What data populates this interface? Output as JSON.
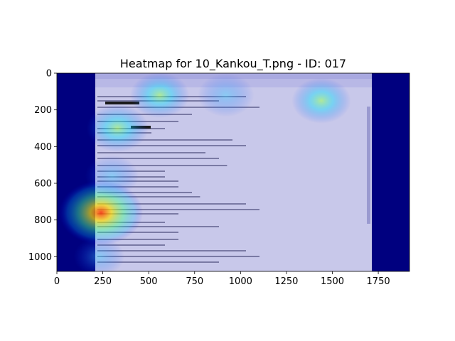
{
  "chart_data": {
    "type": "heatmap",
    "title": "Heatmap for 10_Kankou_T.png - ID: 017",
    "xlabel": "",
    "ylabel": "",
    "xlim": [
      0,
      1920
    ],
    "ylim": [
      1080,
      0
    ],
    "x_ticks": [
      0,
      250,
      500,
      750,
      1000,
      1250,
      1500,
      1750
    ],
    "y_ticks": [
      0,
      200,
      400,
      600,
      800,
      1000
    ],
    "grid": false,
    "colormap": "jet",
    "colormap_colors": {
      "low": "#00007f",
      "mid_low": "#0000ff",
      "mid": "#00ffff",
      "mid_high": "#ffff00",
      "high": "#ff0000"
    },
    "background_image": "email client screenshot",
    "hotspots": [
      {
        "x": 240,
        "y": 760,
        "intensity": 0.85
      },
      {
        "x": 330,
        "y": 300,
        "intensity": 0.45
      },
      {
        "x": 560,
        "y": 120,
        "intensity": 0.4
      },
      {
        "x": 920,
        "y": 120,
        "intensity": 0.35
      },
      {
        "x": 1440,
        "y": 150,
        "intensity": 0.4
      },
      {
        "x": 300,
        "y": 560,
        "intensity": 0.3
      },
      {
        "x": 230,
        "y": 1000,
        "intensity": 0.25
      }
    ]
  }
}
